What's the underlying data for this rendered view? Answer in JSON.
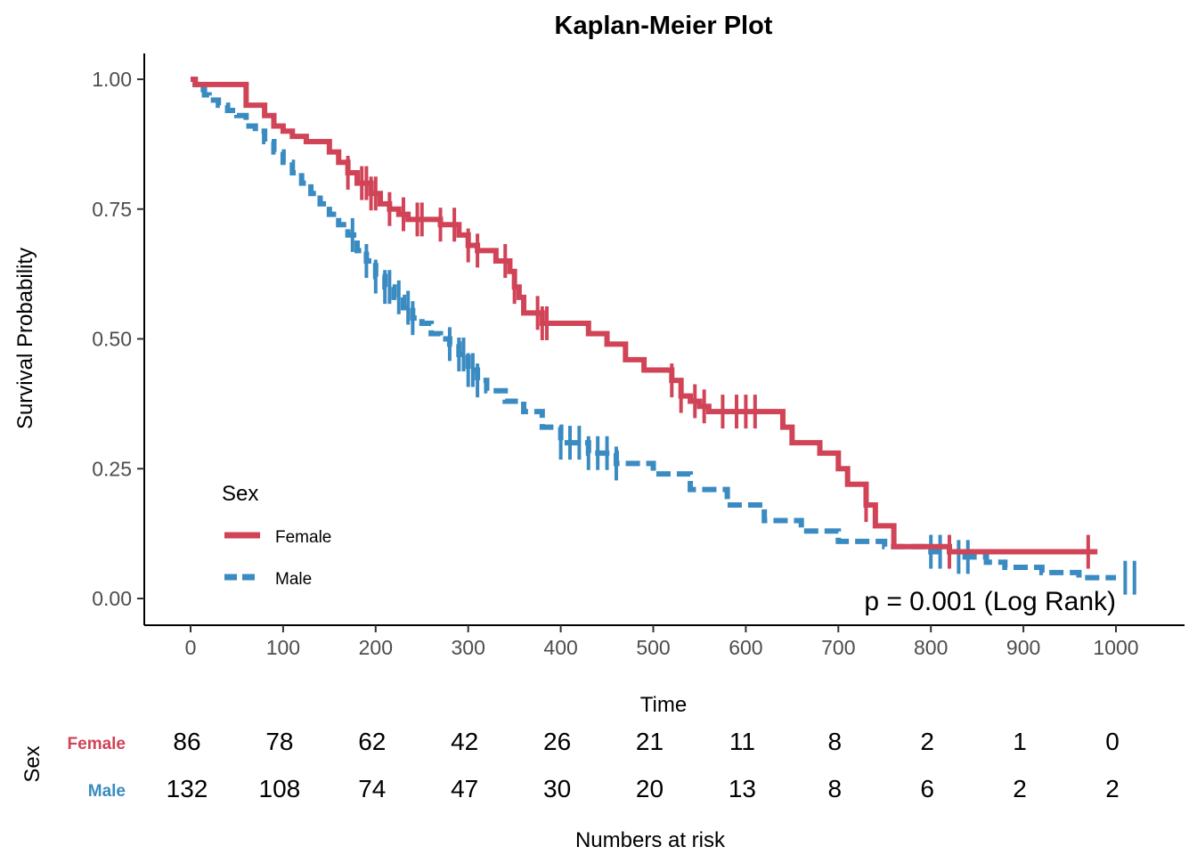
{
  "chart_data": {
    "type": "line",
    "title": "Kaplan-Meier Plot",
    "xlabel": "Time",
    "ylabel": "Survival Probability",
    "xlim": [
      0,
      1040
    ],
    "ylim": [
      0,
      1
    ],
    "x_ticks": [
      0,
      100,
      200,
      300,
      400,
      500,
      600,
      700,
      800,
      900,
      1000
    ],
    "x_tick_labels": [
      "0",
      "100",
      "200",
      "300",
      "400",
      "500",
      "600",
      "700",
      "800",
      "900",
      "1000"
    ],
    "y_ticks": [
      0,
      0.25,
      0.5,
      0.75,
      1.0
    ],
    "y_tick_labels": [
      "0.00",
      "0.25",
      "0.50",
      "0.75",
      "1.00"
    ],
    "annotation": "p = 0.001 (Log Rank)",
    "legend": {
      "title": "Sex",
      "placement": "bottom-left",
      "entries": [
        "Female",
        "Male"
      ]
    },
    "series": [
      {
        "name": "Female",
        "color": "#d14356",
        "line_style": "solid",
        "times": [
          5,
          60,
          80,
          90,
          100,
          110,
          125,
          150,
          160,
          170,
          180,
          195,
          205,
          215,
          225,
          235,
          270,
          290,
          300,
          310,
          330,
          345,
          350,
          355,
          360,
          380,
          430,
          450,
          470,
          490,
          520,
          530,
          540,
          550,
          560,
          640,
          650,
          680,
          700,
          710,
          730,
          740,
          760,
          820,
          980
        ],
        "survival": [
          0.99,
          0.95,
          0.93,
          0.91,
          0.9,
          0.89,
          0.88,
          0.86,
          0.84,
          0.82,
          0.8,
          0.78,
          0.76,
          0.75,
          0.74,
          0.73,
          0.72,
          0.7,
          0.68,
          0.67,
          0.65,
          0.63,
          0.6,
          0.58,
          0.55,
          0.53,
          0.51,
          0.49,
          0.46,
          0.44,
          0.42,
          0.39,
          0.38,
          0.37,
          0.36,
          0.33,
          0.3,
          0.28,
          0.25,
          0.22,
          0.18,
          0.14,
          0.1,
          0.09,
          0.09
        ],
        "censor_times": [
          170,
          185,
          190,
          195,
          200,
          215,
          230,
          245,
          250,
          270,
          285,
          300,
          310,
          340,
          350,
          375,
          380,
          385,
          520,
          530,
          545,
          555,
          575,
          590,
          600,
          610,
          730,
          820,
          970
        ],
        "at_risk": [
          86,
          78,
          62,
          42,
          26,
          21,
          11,
          8,
          2,
          1,
          0
        ]
      },
      {
        "name": "Male",
        "color": "#3a8bc1",
        "line_style": "dashed",
        "times": [
          5,
          10,
          15,
          20,
          30,
          40,
          50,
          60,
          70,
          80,
          90,
          100,
          110,
          120,
          130,
          140,
          150,
          160,
          170,
          180,
          190,
          200,
          210,
          220,
          230,
          240,
          250,
          260,
          270,
          280,
          290,
          300,
          310,
          320,
          340,
          360,
          380,
          400,
          430,
          460,
          500,
          540,
          580,
          620,
          660,
          700,
          750,
          800,
          830,
          860,
          880,
          920,
          960,
          1000
        ],
        "survival": [
          0.99,
          0.98,
          0.97,
          0.96,
          0.95,
          0.94,
          0.93,
          0.91,
          0.9,
          0.88,
          0.86,
          0.84,
          0.82,
          0.8,
          0.78,
          0.76,
          0.74,
          0.72,
          0.7,
          0.67,
          0.65,
          0.62,
          0.6,
          0.58,
          0.56,
          0.54,
          0.53,
          0.51,
          0.5,
          0.49,
          0.47,
          0.44,
          0.42,
          0.4,
          0.38,
          0.36,
          0.33,
          0.3,
          0.28,
          0.26,
          0.24,
          0.21,
          0.18,
          0.15,
          0.13,
          0.11,
          0.1,
          0.09,
          0.08,
          0.07,
          0.06,
          0.05,
          0.04,
          0.04
        ],
        "censor_times": [
          175,
          190,
          200,
          210,
          215,
          225,
          235,
          240,
          280,
          290,
          295,
          300,
          305,
          310,
          400,
          410,
          420,
          430,
          440,
          450,
          460,
          800,
          810,
          830,
          840,
          1010,
          1020
        ],
        "at_risk": [
          132,
          108,
          74,
          47,
          30,
          20,
          13,
          8,
          6,
          2,
          2
        ]
      }
    ]
  },
  "risk_table": {
    "title": "Numbers at risk",
    "axis_label": "Sex",
    "time_points": [
      0,
      100,
      200,
      300,
      400,
      500,
      600,
      700,
      800,
      900,
      1000
    ],
    "rows": [
      {
        "label": "Female",
        "color": "#d14356",
        "values": [
          "86",
          "78",
          "62",
          "42",
          "26",
          "21",
          "11",
          "8",
          "2",
          "1",
          "0"
        ]
      },
      {
        "label": "Male",
        "color": "#3a8bc1",
        "values": [
          "132",
          "108",
          "74",
          "47",
          "30",
          "20",
          "13",
          "8",
          "6",
          "2",
          "2"
        ]
      }
    ]
  }
}
